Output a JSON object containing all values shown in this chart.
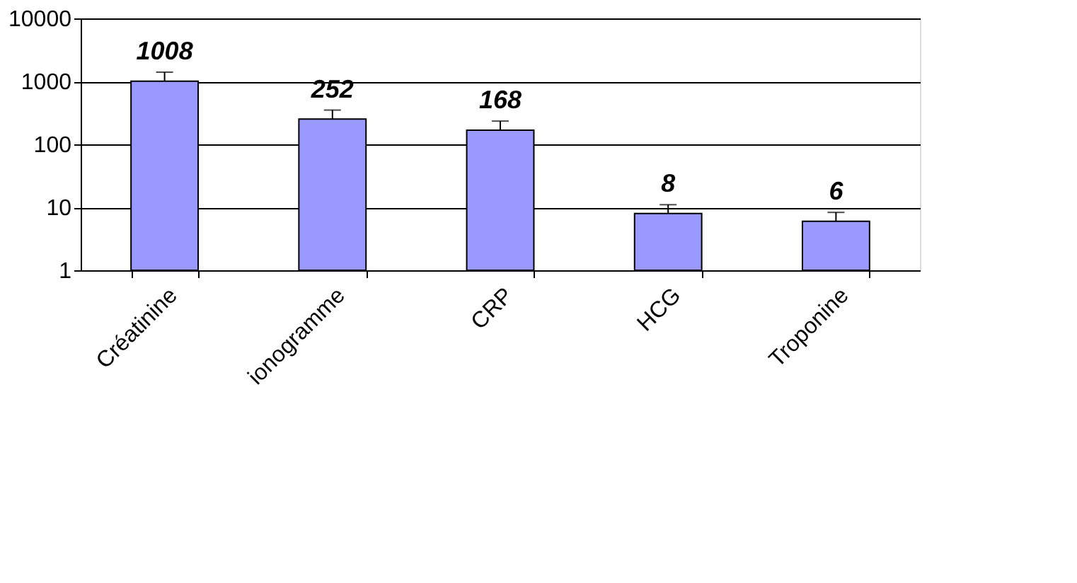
{
  "chart_data": {
    "type": "bar",
    "categories": [
      "Créatinine",
      "ionogramme",
      "CRP",
      "HCG",
      "Troponine"
    ],
    "values": [
      1008,
      252,
      168,
      8,
      6
    ],
    "color": "#9999ff",
    "errors": [
      [
        1008,
        1400
      ],
      [
        252,
        350
      ],
      [
        168,
        234
      ],
      [
        8,
        11
      ],
      [
        6,
        8.3
      ]
    ],
    "data_labels": true,
    "log": "y",
    "ylim": [
      1,
      10000
    ],
    "yticks": [
      1,
      10,
      100,
      1000,
      10000
    ],
    "grid": "y"
  }
}
